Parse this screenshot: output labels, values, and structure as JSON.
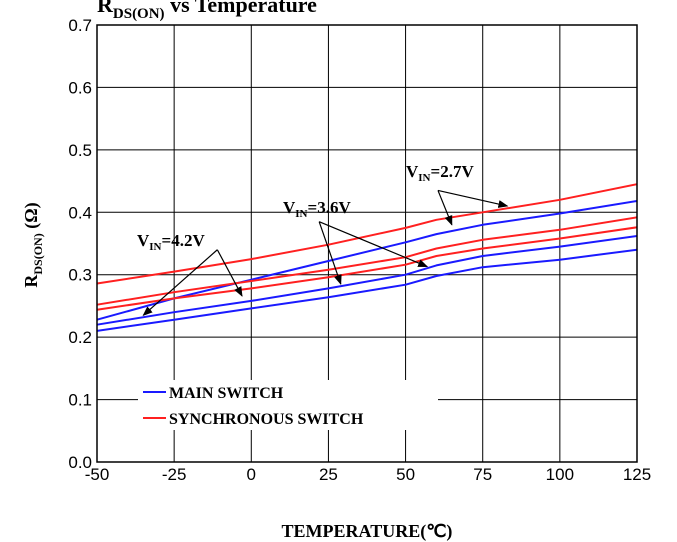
{
  "chart_data": {
    "type": "line",
    "title": {
      "main": "R",
      "sub": "DS(ON)",
      "rest": " vs Temperature"
    },
    "xlabel": "TEMPERATURE(℃)",
    "ylabel": {
      "main": "R",
      "sub": "DS(ON)",
      "rest": " (Ω)"
    },
    "xlim": [
      -50,
      125
    ],
    "ylim": [
      0.0,
      0.7
    ],
    "xticks": [
      "-50",
      "-25",
      "0",
      "25",
      "50",
      "75",
      "100",
      "125"
    ],
    "yticks": [
      "0.0",
      "0.1",
      "0.2",
      "0.3",
      "0.4",
      "0.5",
      "0.6",
      "0.7"
    ],
    "grid": true,
    "legend_position": "bottom-left",
    "legend": [
      {
        "label": "MAIN SWITCH",
        "color": "#1a1aff"
      },
      {
        "label": "SYNCHRONOUS SWITCH",
        "color": "#ff2020"
      }
    ],
    "series": [
      {
        "group": "main",
        "vin": "2.7V",
        "color": "#1a1aff",
        "x": [
          -50,
          -25,
          0,
          25,
          50,
          60,
          75,
          100,
          125
        ],
        "y": [
          0.228,
          0.262,
          0.292,
          0.322,
          0.352,
          0.365,
          0.38,
          0.398,
          0.418
        ]
      },
      {
        "group": "main",
        "vin": "3.6V",
        "color": "#1a1aff",
        "x": [
          -50,
          -25,
          0,
          25,
          50,
          60,
          75,
          100,
          125
        ],
        "y": [
          0.22,
          0.24,
          0.258,
          0.278,
          0.3,
          0.315,
          0.33,
          0.345,
          0.362
        ]
      },
      {
        "group": "main",
        "vin": "4.2V",
        "color": "#1a1aff",
        "x": [
          -50,
          -25,
          0,
          25,
          50,
          60,
          75,
          100,
          125
        ],
        "y": [
          0.21,
          0.228,
          0.246,
          0.264,
          0.284,
          0.298,
          0.312,
          0.324,
          0.34
        ]
      },
      {
        "group": "sync",
        "vin": "2.7V",
        "color": "#ff2020",
        "x": [
          -50,
          -25,
          0,
          25,
          50,
          60,
          75,
          100,
          125
        ],
        "y": [
          0.286,
          0.305,
          0.325,
          0.348,
          0.375,
          0.388,
          0.4,
          0.42,
          0.445
        ]
      },
      {
        "group": "sync",
        "vin": "3.6V",
        "color": "#ff2020",
        "x": [
          -50,
          -25,
          0,
          25,
          50,
          60,
          75,
          100,
          125
        ],
        "y": [
          0.252,
          0.272,
          0.29,
          0.308,
          0.328,
          0.342,
          0.356,
          0.372,
          0.392
        ]
      },
      {
        "group": "sync",
        "vin": "4.2V",
        "color": "#ff2020",
        "x": [
          -50,
          -25,
          0,
          25,
          50,
          60,
          75,
          100,
          125
        ],
        "y": [
          0.244,
          0.262,
          0.278,
          0.296,
          0.316,
          0.33,
          0.342,
          0.358,
          0.376
        ]
      }
    ],
    "annotations": [
      {
        "main": "V",
        "sub": "IN",
        "rest": "=2.7V",
        "arrow_from": [
          60.5,
          0.435
        ],
        "arrow_to": [
          [
            65,
            0.38
          ],
          [
            83,
            0.41
          ]
        ]
      },
      {
        "main": "V",
        "sub": "IN",
        "rest": "=3.6V",
        "arrow_from": [
          22,
          0.385
        ],
        "arrow_to": [
          [
            29,
            0.285
          ],
          [
            57,
            0.313
          ]
        ]
      },
      {
        "main": "V",
        "sub": "IN",
        "rest": "=4.2V",
        "arrow_from": [
          -11,
          0.34
        ],
        "arrow_to": [
          [
            -35,
            0.235
          ],
          [
            -3,
            0.266
          ]
        ]
      }
    ]
  }
}
